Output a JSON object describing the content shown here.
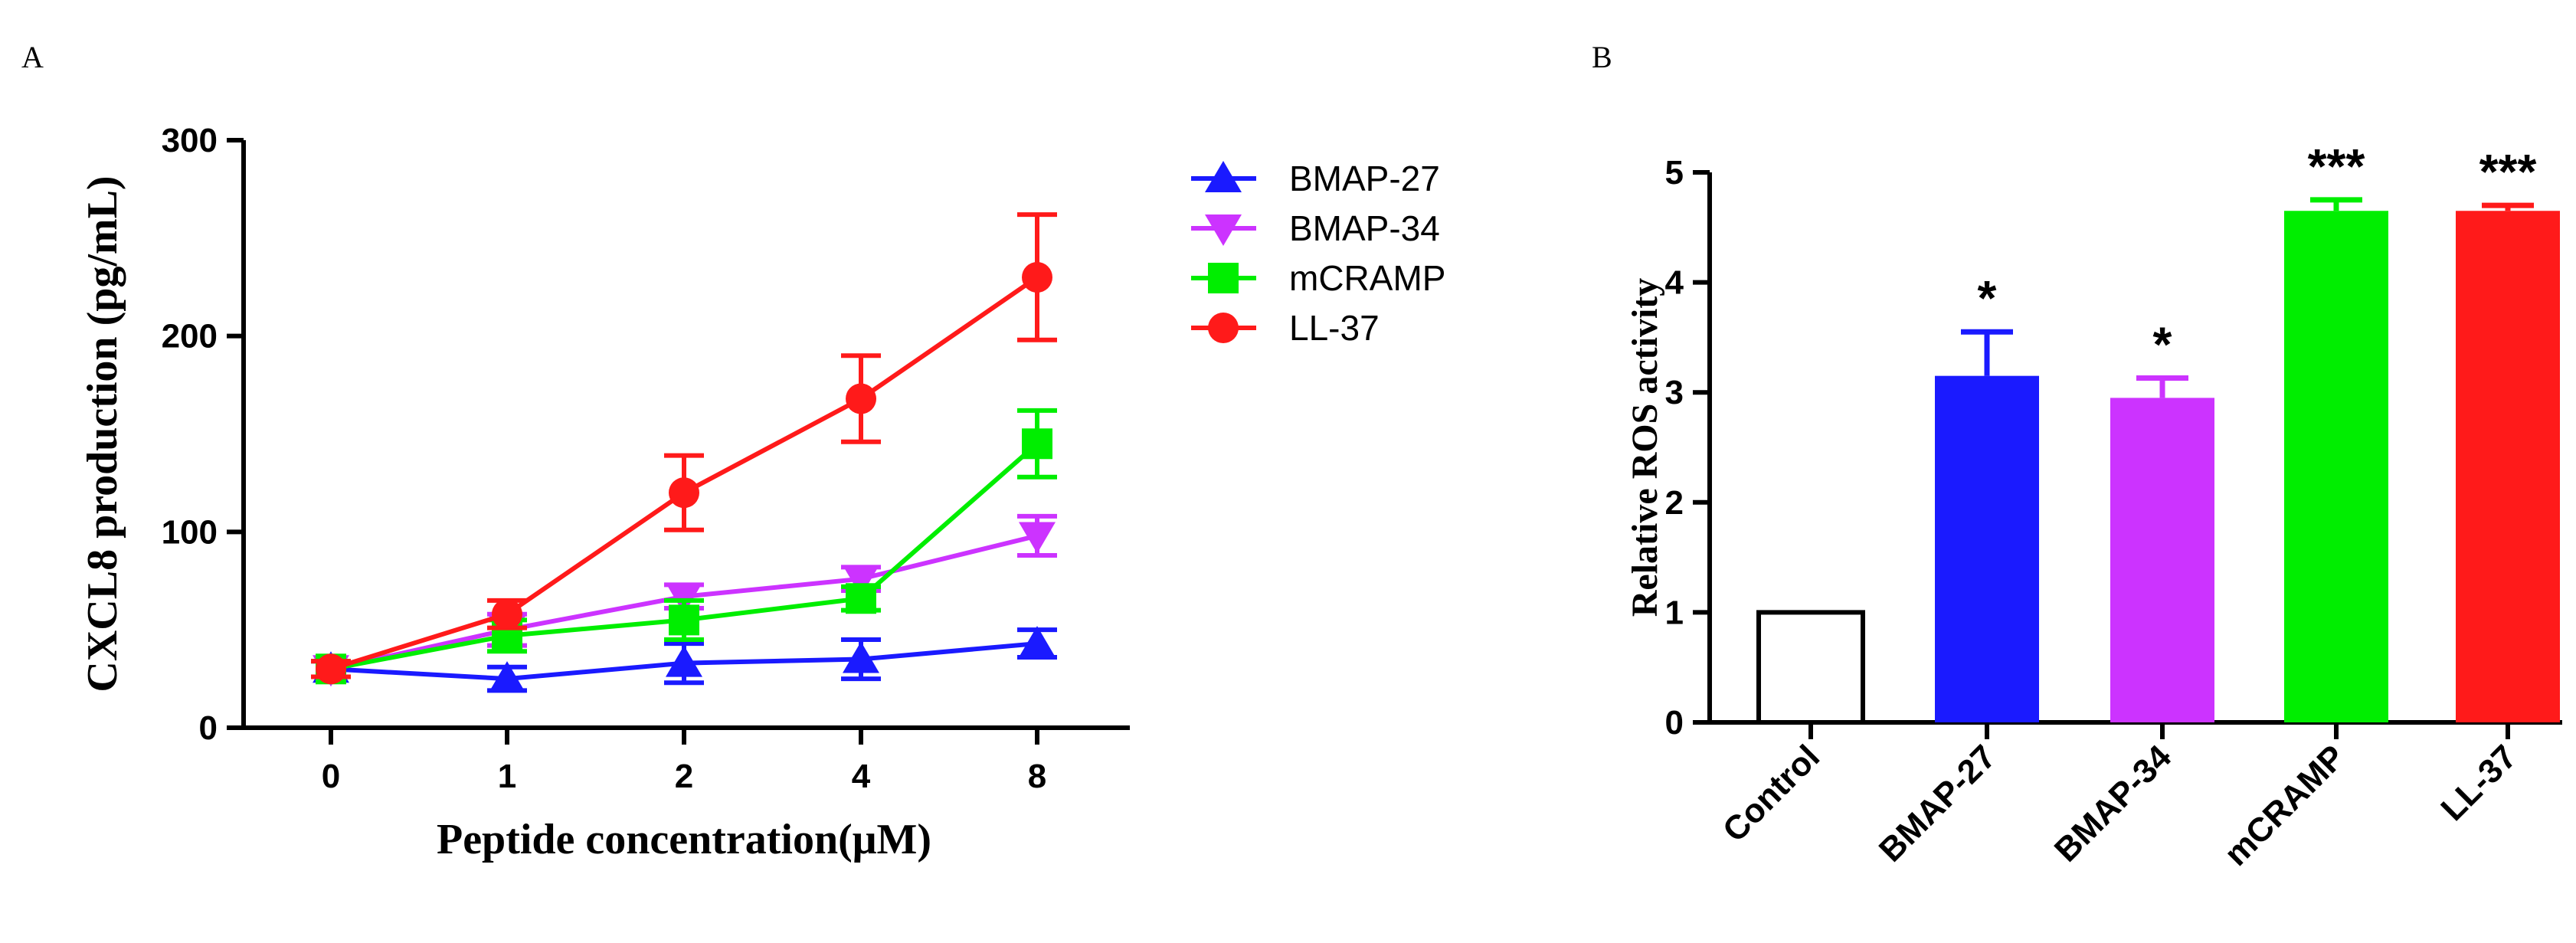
{
  "panels": {
    "a_label": "A",
    "b_label": "B"
  },
  "chart_data": [
    {
      "type": "line",
      "panel": "A",
      "title": "",
      "xlabel": "Peptide concentration(μM)",
      "ylabel": "CXCL8 production (pg/mL)",
      "categories": [
        "0",
        "1",
        "2",
        "4",
        "8"
      ],
      "ylim": [
        0,
        300
      ],
      "yticks": [
        "0",
        "100",
        "200",
        "300"
      ],
      "legend_position": "right",
      "series": [
        {
          "name": "BMAP-27",
          "color": "#1a1aff",
          "marker": "triangle-up",
          "values": [
            30,
            25,
            33,
            35,
            43
          ],
          "errors": [
            4,
            6,
            10,
            10,
            7
          ]
        },
        {
          "name": "BMAP-34",
          "color": "#cc33ff",
          "marker": "triangle-down",
          "values": [
            30,
            50,
            67,
            76,
            98
          ],
          "errors": [
            4,
            8,
            6,
            6,
            10
          ]
        },
        {
          "name": "mCRAMP",
          "color": "#00ee00",
          "marker": "square",
          "values": [
            30,
            47,
            55,
            66,
            145
          ],
          "errors": [
            4,
            8,
            10,
            6,
            17
          ]
        },
        {
          "name": "LL-37",
          "color": "#ff1a1a",
          "marker": "circle",
          "values": [
            30,
            58,
            120,
            168,
            230
          ],
          "errors": [
            4,
            7,
            19,
            22,
            32
          ]
        }
      ]
    },
    {
      "type": "bar",
      "panel": "B",
      "title": "",
      "xlabel": "",
      "ylabel": "Relative ROS activity",
      "categories": [
        "Control",
        "BMAP-27",
        "BMAP-34",
        "mCRAMP",
        "LL-37"
      ],
      "values": [
        1.0,
        3.15,
        2.95,
        4.65,
        4.65
      ],
      "errors": [
        0,
        0.4,
        0.18,
        0.1,
        0.05
      ],
      "significance": [
        "",
        "*",
        "*",
        "***",
        "***"
      ],
      "colors": [
        "#ffffff",
        "#1a1aff",
        "#cc33ff",
        "#00ee00",
        "#ff1a1a"
      ],
      "ylim": [
        0,
        5
      ],
      "yticks": [
        "0",
        "1",
        "2",
        "3",
        "4",
        "5"
      ]
    }
  ]
}
